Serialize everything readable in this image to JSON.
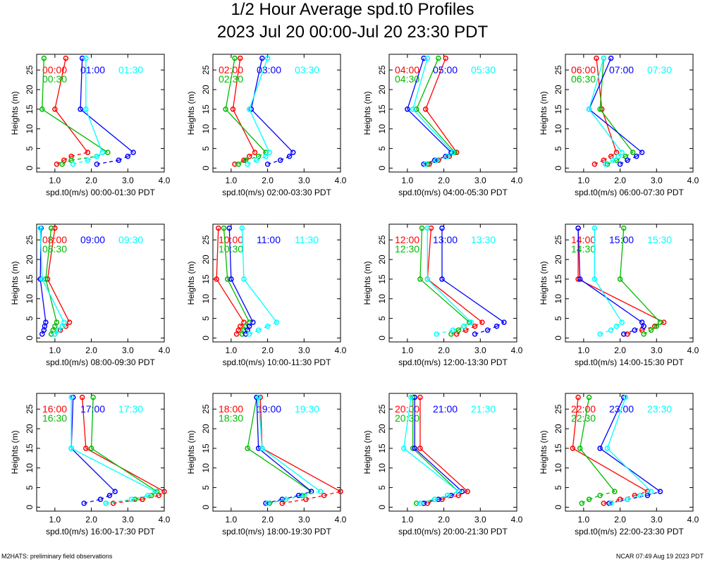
{
  "title": "1/2 Hour Average spd.t0 Profiles",
  "subtitle": "2023 Jul 20 00:00-Jul 20 23:30 PDT",
  "footer_left": "M2HATS: preliminary field observations",
  "footer_right": "NCAR 07:49 Aug 19 2023 PDT",
  "ylabel": "Heights (m)",
  "xticks": [
    "1.0",
    "2.0",
    "3.0",
    "4.0"
  ],
  "yticks": [
    "0",
    "5",
    "10",
    "15",
    "20",
    "25"
  ],
  "colors": {
    "red": "#ff0000",
    "green": "#00bb00",
    "blue": "#0000ff",
    "cyan": "#00ffff"
  },
  "chart_data": [
    {
      "type": "line",
      "xlabel": "spd.t0(m/s) 00:00-01:30 PDT",
      "xlim": [
        0.5,
        4.0
      ],
      "ylim": [
        -1,
        29
      ],
      "series": [
        {
          "name": "00:00",
          "color": "red",
          "x": [
            1.05,
            1.25,
            1.45,
            1.9,
            1.0,
            1.3
          ],
          "y": [
            1,
            2,
            3,
            4,
            15,
            28
          ]
        },
        {
          "name": "00:30",
          "color": "green",
          "x": [
            1.2,
            1.45,
            2.15,
            2.45,
            0.65,
            0.7
          ],
          "y": [
            1,
            2,
            3,
            4,
            15,
            28
          ]
        },
        {
          "name": "01:00",
          "color": "blue",
          "x": [
            2.15,
            2.75,
            3.0,
            3.15,
            1.7,
            1.75
          ],
          "y": [
            1,
            2,
            3,
            4,
            15,
            28
          ]
        },
        {
          "name": "01:30",
          "color": "cyan",
          "x": [
            1.5,
            1.9,
            2.15,
            2.3,
            1.85,
            1.85
          ],
          "y": [
            1,
            2,
            3,
            4,
            15,
            28
          ]
        }
      ]
    },
    {
      "type": "line",
      "xlabel": "spd.t0(m/s) 02:00-03:30 PDT",
      "xlim": [
        0.5,
        4.0
      ],
      "ylim": [
        -1,
        29
      ],
      "series": [
        {
          "name": "02:00",
          "color": "red",
          "x": [
            1.1,
            1.35,
            1.5,
            1.65,
            1.05,
            1.25
          ],
          "y": [
            1,
            2,
            3,
            4,
            15,
            28
          ]
        },
        {
          "name": "02:30",
          "color": "green",
          "x": [
            1.2,
            1.4,
            1.75,
            1.95,
            0.85,
            1.1
          ],
          "y": [
            1,
            2,
            3,
            4,
            15,
            28
          ]
        },
        {
          "name": "03:00",
          "color": "blue",
          "x": [
            2.0,
            2.35,
            2.6,
            2.7,
            1.55,
            1.85
          ],
          "y": [
            1,
            2,
            3,
            4,
            15,
            28
          ]
        },
        {
          "name": "03:30",
          "color": "cyan",
          "x": [
            1.45,
            1.7,
            1.95,
            2.05,
            1.5,
            2.0
          ],
          "y": [
            1,
            2,
            3,
            4,
            15,
            28
          ]
        }
      ]
    },
    {
      "type": "line",
      "xlabel": "spd.t0(m/s) 04:00-05:30 PDT",
      "xlim": [
        0.5,
        4.0
      ],
      "ylim": [
        -1,
        29
      ],
      "series": [
        {
          "name": "04:00",
          "color": "red",
          "x": [
            1.6,
            1.85,
            2.15,
            2.35,
            1.5,
            2.05
          ],
          "y": [
            1,
            2,
            3,
            4,
            15,
            28
          ]
        },
        {
          "name": "04:30",
          "color": "green",
          "x": [
            1.55,
            1.8,
            2.1,
            2.3,
            1.25,
            1.85
          ],
          "y": [
            1,
            2,
            3,
            4,
            15,
            28
          ]
        },
        {
          "name": "05:00",
          "color": "blue",
          "x": [
            1.45,
            1.75,
            2.05,
            2.2,
            1.0,
            1.45
          ],
          "y": [
            1,
            2,
            3,
            4,
            15,
            28
          ]
        },
        {
          "name": "05:30",
          "color": "cyan",
          "x": [
            1.5,
            1.8,
            2.1,
            2.25,
            1.15,
            1.55
          ],
          "y": [
            1,
            2,
            3,
            4,
            15,
            28
          ]
        }
      ]
    },
    {
      "type": "line",
      "xlabel": "spd.t0(m/s) 06:00-07:30 PDT",
      "xlim": [
        0.5,
        4.0
      ],
      "ylim": [
        -1,
        29
      ],
      "series": [
        {
          "name": "06:00",
          "color": "red",
          "x": [
            1.3,
            1.55,
            1.75,
            1.9,
            1.5,
            1.35
          ],
          "y": [
            1,
            2,
            3,
            4,
            15,
            28
          ]
        },
        {
          "name": "06:30",
          "color": "green",
          "x": [
            1.65,
            1.9,
            2.15,
            2.35,
            1.45,
            1.55
          ],
          "y": [
            1,
            2,
            3,
            4,
            15,
            28
          ]
        },
        {
          "name": "07:00",
          "color": "blue",
          "x": [
            2.0,
            2.2,
            2.45,
            2.6,
            1.15,
            1.75
          ],
          "y": [
            1,
            2,
            3,
            4,
            15,
            28
          ]
        },
        {
          "name": "07:30",
          "color": "cyan",
          "x": [
            1.6,
            1.8,
            1.95,
            2.05,
            1.15,
            1.55
          ],
          "y": [
            1,
            2,
            3,
            4,
            15,
            28
          ]
        }
      ]
    },
    {
      "type": "line",
      "xlabel": "spd.t0(m/s) 08:00-09:30 PDT",
      "xlim": [
        0.5,
        4.0
      ],
      "ylim": [
        -1,
        29
      ],
      "series": [
        {
          "name": "08:00",
          "color": "red",
          "x": [
            1.0,
            1.15,
            1.3,
            1.4,
            0.8,
            1.0
          ],
          "y": [
            1,
            2,
            3,
            4,
            15,
            28
          ]
        },
        {
          "name": "08:30",
          "color": "green",
          "x": [
            0.9,
            0.95,
            1.0,
            1.05,
            0.75,
            0.9
          ],
          "y": [
            1,
            2,
            3,
            4,
            15,
            28
          ]
        },
        {
          "name": "09:00",
          "color": "blue",
          "x": [
            0.65,
            0.7,
            0.72,
            0.75,
            0.6,
            0.62
          ],
          "y": [
            1,
            2,
            3,
            4,
            15,
            28
          ]
        },
        {
          "name": "09:30",
          "color": "cyan",
          "x": [
            1.0,
            1.1,
            1.2,
            1.25,
            0.65,
            0.6
          ],
          "y": [
            1,
            2,
            3,
            4,
            15,
            28
          ]
        }
      ]
    },
    {
      "type": "line",
      "xlabel": "spd.t0(m/s) 10:00-11:30 PDT",
      "xlim": [
        0.5,
        4.0
      ],
      "ylim": [
        -1,
        29
      ],
      "series": [
        {
          "name": "10:00",
          "color": "red",
          "x": [
            1.15,
            1.2,
            1.25,
            1.35,
            0.6,
            0.65
          ],
          "y": [
            1,
            2,
            3,
            4,
            15,
            28
          ]
        },
        {
          "name": "10:30",
          "color": "green",
          "x": [
            1.3,
            1.35,
            1.4,
            1.5,
            0.9,
            0.8
          ],
          "y": [
            1,
            2,
            3,
            4,
            15,
            28
          ]
        },
        {
          "name": "11:00",
          "color": "blue",
          "x": [
            1.4,
            1.45,
            1.5,
            1.6,
            1.0,
            0.95
          ],
          "y": [
            1,
            2,
            3,
            4,
            15,
            28
          ]
        },
        {
          "name": "11:30",
          "color": "cyan",
          "x": [
            1.5,
            1.75,
            2.0,
            2.25,
            1.35,
            1.3
          ],
          "y": [
            1,
            2,
            3,
            4,
            15,
            28
          ]
        }
      ]
    },
    {
      "type": "line",
      "xlabel": "spd.t0(m/s) 12:00-13:30 PDT",
      "xlim": [
        0.5,
        4.0
      ],
      "ylim": [
        -1,
        29
      ],
      "series": [
        {
          "name": "12:00",
          "color": "red",
          "x": [
            2.35,
            2.6,
            2.85,
            3.05,
            1.55,
            1.65
          ],
          "y": [
            1,
            2,
            3,
            4,
            15,
            28
          ]
        },
        {
          "name": "12:30",
          "color": "green",
          "x": [
            2.2,
            2.4,
            2.55,
            2.7,
            1.35,
            1.4
          ],
          "y": [
            1,
            2,
            3,
            4,
            15,
            28
          ]
        },
        {
          "name": "13:00",
          "color": "blue",
          "x": [
            2.85,
            3.2,
            3.45,
            3.65,
            1.95,
            1.95
          ],
          "y": [
            1,
            2,
            3,
            4,
            15,
            28
          ]
        },
        {
          "name": "13:30",
          "color": "cyan",
          "x": [
            1.8,
            2.25,
            2.55,
            2.75,
            1.55,
            1.55
          ],
          "y": [
            1,
            2,
            3,
            4,
            15,
            28
          ]
        }
      ]
    },
    {
      "type": "line",
      "xlabel": "spd.t0(m/s) 14:00-15:30 PDT",
      "xlim": [
        0.5,
        4.0
      ],
      "ylim": [
        -1,
        29
      ],
      "series": [
        {
          "name": "14:00",
          "color": "red",
          "x": [
            2.2,
            2.6,
            2.95,
            3.2,
            0.85,
            0.85
          ],
          "y": [
            1,
            2,
            3,
            4,
            15,
            28
          ]
        },
        {
          "name": "14:30",
          "color": "green",
          "x": [
            2.65,
            2.85,
            3.0,
            3.1,
            2.0,
            2.1
          ],
          "y": [
            1,
            2,
            3,
            4,
            15,
            28
          ]
        },
        {
          "name": "15:00",
          "color": "blue",
          "x": [
            2.1,
            2.4,
            2.65,
            2.6,
            0.9,
            0.85
          ],
          "y": [
            1,
            2,
            3,
            4,
            15,
            28
          ]
        },
        {
          "name": "15:30",
          "color": "cyan",
          "x": [
            1.45,
            1.75,
            1.9,
            2.05,
            1.3,
            1.3
          ],
          "y": [
            1,
            2,
            3,
            4,
            15,
            28
          ]
        }
      ]
    },
    {
      "type": "line",
      "xlabel": "spd.t0(m/s) 16:00-17:30 PDT",
      "xlim": [
        0.5,
        4.0
      ],
      "ylim": [
        -1,
        29
      ],
      "series": [
        {
          "name": "16:00",
          "color": "red",
          "x": [
            2.6,
            3.4,
            3.85,
            4.0,
            1.85,
            1.75
          ],
          "y": [
            1,
            2,
            3,
            4,
            15,
            28
          ]
        },
        {
          "name": "16:30",
          "color": "green",
          "x": [
            2.4,
            3.2,
            3.65,
            3.8,
            2.0,
            2.05
          ],
          "y": [
            1,
            2,
            3,
            4,
            15,
            28
          ]
        },
        {
          "name": "17:00",
          "color": "blue",
          "x": [
            1.8,
            2.25,
            2.5,
            2.65,
            1.45,
            1.5
          ],
          "y": [
            1,
            2,
            3,
            4,
            15,
            28
          ]
        },
        {
          "name": "17:30",
          "color": "cyan",
          "x": [
            2.4,
            3.1,
            3.55,
            3.75,
            1.45,
            1.45
          ],
          "y": [
            1,
            2,
            3,
            4,
            15,
            28
          ]
        }
      ]
    },
    {
      "type": "line",
      "xlabel": "spd.t0(m/s) 18:00-19:30 PDT",
      "xlim": [
        0.5,
        4.0
      ],
      "ylim": [
        -1,
        29
      ],
      "series": [
        {
          "name": "18:00",
          "color": "red",
          "x": [
            2.4,
            3.05,
            3.55,
            4.0,
            1.85,
            1.8
          ],
          "y": [
            1,
            2,
            3,
            4,
            15,
            28
          ]
        },
        {
          "name": "18:30",
          "color": "green",
          "x": [
            2.05,
            2.5,
            2.95,
            3.2,
            1.45,
            1.7
          ],
          "y": [
            1,
            2,
            3,
            4,
            15,
            28
          ]
        },
        {
          "name": "19:00",
          "color": "blue",
          "x": [
            1.95,
            2.4,
            2.85,
            3.2,
            1.75,
            1.7
          ],
          "y": [
            1,
            2,
            3,
            4,
            15,
            28
          ]
        },
        {
          "name": "19:30",
          "color": "cyan",
          "x": [
            2.0,
            2.5,
            3.0,
            3.45,
            1.85,
            1.75
          ],
          "y": [
            1,
            2,
            3,
            4,
            15,
            28
          ]
        }
      ]
    },
    {
      "type": "line",
      "xlabel": "spd.t0(m/s) 20:00-21:30 PDT",
      "xlim": [
        0.5,
        4.0
      ],
      "ylim": [
        -1,
        29
      ],
      "series": [
        {
          "name": "20:00",
          "color": "red",
          "x": [
            1.55,
            1.95,
            2.4,
            2.65,
            1.35,
            1.35
          ],
          "y": [
            1,
            2,
            3,
            4,
            15,
            28
          ]
        },
        {
          "name": "20:30",
          "color": "green",
          "x": [
            1.25,
            1.75,
            2.1,
            2.4,
            1.15,
            1.15
          ],
          "y": [
            1,
            2,
            3,
            4,
            15,
            28
          ]
        },
        {
          "name": "21:00",
          "color": "blue",
          "x": [
            1.45,
            1.85,
            2.2,
            2.5,
            1.2,
            1.2
          ],
          "y": [
            1,
            2,
            3,
            4,
            15,
            28
          ]
        },
        {
          "name": "21:30",
          "color": "cyan",
          "x": [
            1.35,
            1.75,
            2.1,
            2.4,
            0.9,
            1.1
          ],
          "y": [
            1,
            2,
            3,
            4,
            15,
            28
          ]
        }
      ]
    },
    {
      "type": "line",
      "xlabel": "spd.t0(m/s) 22:00-23:30 PDT",
      "xlim": [
        0.5,
        4.0
      ],
      "ylim": [
        -1,
        29
      ],
      "series": [
        {
          "name": "22:00",
          "color": "red",
          "x": [
            1.55,
            2.0,
            2.4,
            2.75,
            0.7,
            0.85
          ],
          "y": [
            1,
            2,
            3,
            4,
            15,
            28
          ]
        },
        {
          "name": "22:30",
          "color": "green",
          "x": [
            0.95,
            1.15,
            1.45,
            1.85,
            0.9,
            1.15
          ],
          "y": [
            1,
            2,
            3,
            4,
            15,
            28
          ]
        },
        {
          "name": "23:00",
          "color": "blue",
          "x": [
            1.7,
            2.2,
            2.75,
            3.1,
            1.45,
            2.1
          ],
          "y": [
            1,
            2,
            3,
            4,
            15,
            28
          ]
        },
        {
          "name": "23:30",
          "color": "cyan",
          "x": [
            1.75,
            2.2,
            2.55,
            2.85,
            1.65,
            2.15
          ],
          "y": [
            1,
            2,
            3,
            4,
            15,
            28
          ]
        }
      ]
    }
  ]
}
